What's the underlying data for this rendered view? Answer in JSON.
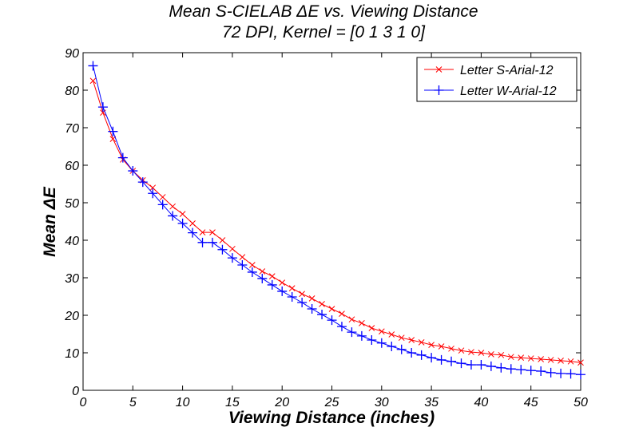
{
  "chart_data": {
    "type": "line",
    "title": "Mean S-CIELAB ΔE vs. Viewing Distance",
    "subtitle": "72 DPI, Kernel = [0 1 3 1 0]",
    "xlabel": "Viewing Distance (inches)",
    "ylabel": "Mean ΔE",
    "xlim": [
      0,
      50
    ],
    "ylim": [
      0,
      90
    ],
    "xticks": [
      "0",
      "5",
      "10",
      "15",
      "20",
      "25",
      "30",
      "35",
      "40",
      "45",
      "50"
    ],
    "yticks": [
      "0",
      "10",
      "20",
      "30",
      "40",
      "50",
      "60",
      "70",
      "80",
      "90"
    ],
    "grid": false,
    "legend_position": "top-right",
    "x": [
      1,
      2,
      3,
      4,
      5,
      6,
      7,
      8,
      9,
      10,
      11,
      12,
      13,
      14,
      15,
      16,
      17,
      18,
      19,
      20,
      21,
      22,
      23,
      24,
      25,
      26,
      27,
      28,
      29,
      30,
      31,
      32,
      33,
      34,
      35,
      36,
      37,
      38,
      39,
      40,
      41,
      42,
      43,
      44,
      45,
      46,
      47,
      48,
      49,
      50
    ],
    "series": [
      {
        "name": "Letter S-Arial-12",
        "color": "#ff0000",
        "marker": "x",
        "values": [
          82.5,
          74,
          67,
          61.5,
          58.5,
          56,
          54,
          51.5,
          49,
          47,
          44.5,
          42.1,
          42.1,
          40,
          37.7,
          35.5,
          33.4,
          31.7,
          30.4,
          28.7,
          27.2,
          25.7,
          24.5,
          23.0,
          21.7,
          20.4,
          18.9,
          17.9,
          16.6,
          15.7,
          14.9,
          14.0,
          13.4,
          12.8,
          12.1,
          11.7,
          11.1,
          10.6,
          10.2,
          10.0,
          9.6,
          9.4,
          8.9,
          8.7,
          8.5,
          8.3,
          8.1,
          7.9,
          7.7,
          7.4
        ]
      },
      {
        "name": "Letter W-Arial-12",
        "color": "#0000ff",
        "marker": "+",
        "values": [
          86.5,
          75.5,
          69,
          62,
          58.5,
          55.5,
          52.5,
          49.5,
          46.5,
          44.5,
          42,
          39.4,
          39.4,
          37.5,
          35.3,
          33.4,
          31.5,
          29.8,
          28.1,
          26.4,
          24.9,
          23.4,
          21.7,
          20.2,
          18.7,
          17.0,
          15.5,
          14.5,
          13.4,
          12.6,
          11.7,
          10.9,
          10.0,
          9.4,
          8.7,
          8.1,
          7.7,
          7.2,
          6.8,
          6.8,
          6.4,
          6.0,
          5.7,
          5.5,
          5.3,
          5.1,
          4.7,
          4.5,
          4.4,
          4.2
        ]
      }
    ]
  }
}
